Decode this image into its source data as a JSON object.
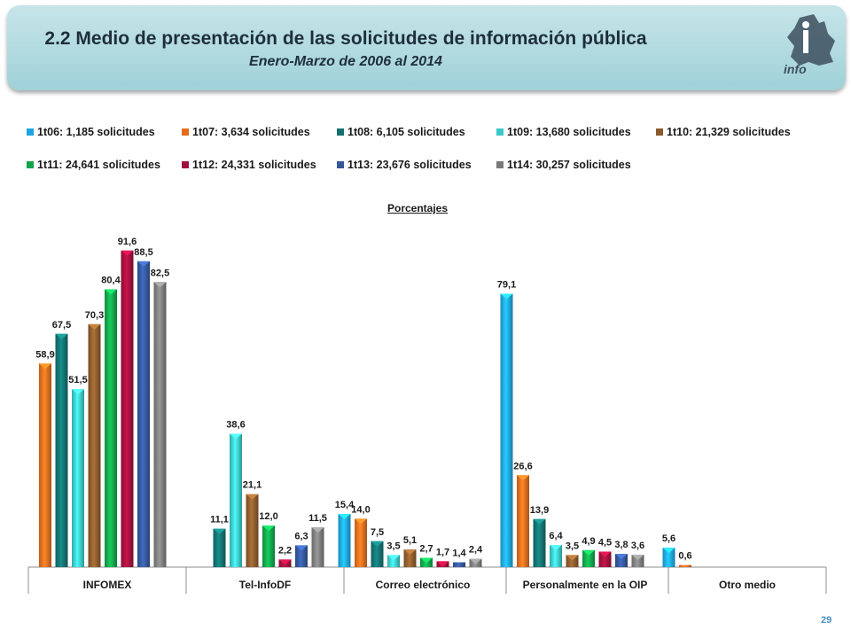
{
  "header": {
    "title": "2.2 Medio de presentación de las solicitudes de información pública",
    "subtitle": "Enero-Marzo de 2006 al 2014",
    "logo_text": "info"
  },
  "page_number": "29",
  "chart_data": {
    "type": "bar",
    "title": "Porcentajes",
    "categories": [
      "INFOMEX",
      "Tel-InfoDF",
      "Correo electrónico",
      "Personalmente en la OIP",
      "Otro medio"
    ],
    "ylim": [
      0,
      100
    ],
    "grid": false,
    "legend_position": "top",
    "series": [
      {
        "name": "1t06: 1,185 solicitudes",
        "color": "#1ea4e0",
        "values": [
          null,
          null,
          15.4,
          79.1,
          5.6
        ],
        "labels": [
          "",
          "",
          "15,4",
          "79,1",
          "5,6"
        ]
      },
      {
        "name": "1t07: 3,634 solicitudes",
        "color": "#e46c1e",
        "values": [
          58.9,
          null,
          14.0,
          26.6,
          0.6
        ],
        "labels": [
          "58,9",
          "",
          "14,0",
          "26,6",
          "0,6"
        ]
      },
      {
        "name": "1t08: 6,105 solicitudes",
        "color": "#13706e",
        "values": [
          67.5,
          11.1,
          7.5,
          13.9,
          null
        ],
        "labels": [
          "67,5",
          "11,1",
          "7,5",
          "13,9",
          ""
        ]
      },
      {
        "name": "1t09: 13,680 solicitudes",
        "color": "#3cc8c8",
        "values": [
          51.5,
          38.6,
          3.5,
          6.4,
          null
        ],
        "labels": [
          "51,5",
          "38,6",
          "3,5",
          "6,4",
          ""
        ]
      },
      {
        "name": "1t10: 21,329 solicitudes",
        "color": "#8a5a2c",
        "values": [
          70.3,
          21.1,
          5.1,
          3.5,
          null
        ],
        "labels": [
          "70,3",
          "21,1",
          "5,1",
          "3,5",
          ""
        ]
      },
      {
        "name": "1t11: 24,641 solicitudes",
        "color": "#12a34a",
        "values": [
          80.4,
          12.0,
          2.7,
          4.9,
          null
        ],
        "labels": [
          "80,4",
          "12,0",
          "2,7",
          "4,9",
          ""
        ]
      },
      {
        "name": "1t12: 24,331 solicitudes",
        "color": "#a0103c",
        "values": [
          91.6,
          2.2,
          1.7,
          4.5,
          null
        ],
        "labels": [
          "91,6",
          "2,2",
          "1,7",
          "4,5",
          ""
        ]
      },
      {
        "name": "1t13: 23,676 solicitudes",
        "color": "#34569a",
        "values": [
          88.5,
          6.3,
          1.4,
          3.8,
          null
        ],
        "labels": [
          "88,5",
          "6,3",
          "1,4",
          "3,8",
          ""
        ]
      },
      {
        "name": "1t14: 30,257 solicitudes",
        "color": "#7a7a7a",
        "values": [
          82.5,
          11.5,
          2.4,
          3.6,
          null
        ],
        "labels": [
          "82,5",
          "11,5",
          "2,4",
          "3,6",
          ""
        ]
      }
    ]
  }
}
